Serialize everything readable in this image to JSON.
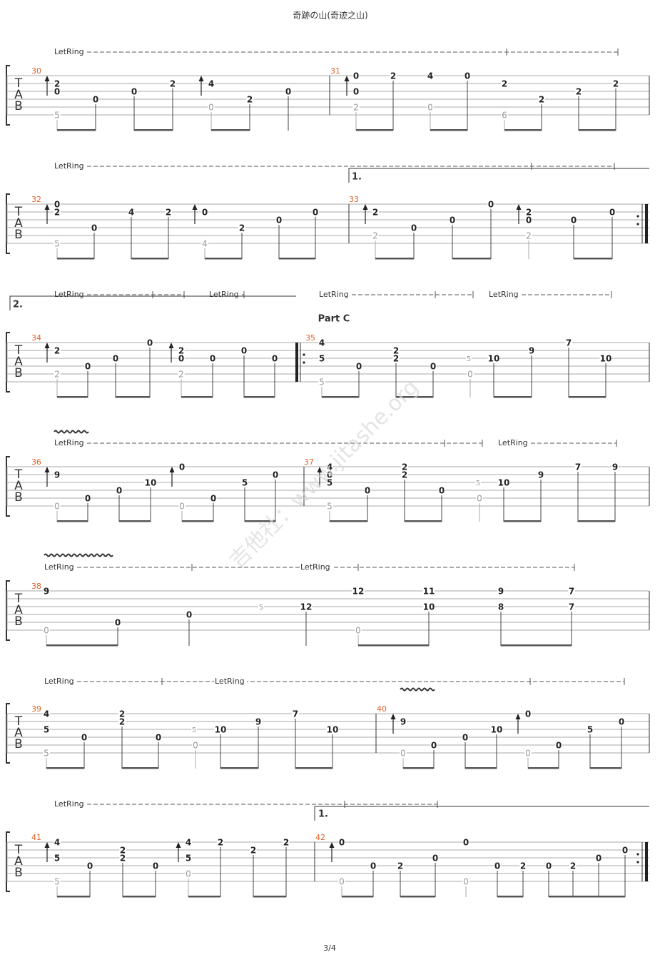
{
  "title": "奇跡の山(奇迹之山)",
  "page": "3/4",
  "watermark": "吉他社：www.jitashe.org",
  "part": "Part C",
  "tab": [
    "T",
    "A",
    "B"
  ],
  "systems": [
    {
      "letring": [
        "LetRing"
      ],
      "endings": [],
      "measures": [
        {
          "number": 30,
          "columns": [
            [
              null,
              2,
              0,
              null,
              null,
              5
            ],
            [
              null,
              null,
              null,
              0
            ],
            [
              null,
              null,
              0
            ],
            [
              null,
              2
            ],
            [
              null,
              4,
              null,
              null,
              0
            ],
            [
              null,
              null,
              null,
              2
            ],
            [
              null,
              null,
              0
            ]
          ]
        },
        {
          "number": 31,
          "columns": [
            [
              0,
              null,
              0,
              null,
              2
            ],
            [
              2
            ],
            [
              4,
              null,
              null,
              null,
              0
            ],
            [
              0
            ],
            [
              null,
              2,
              null,
              null,
              null,
              6
            ],
            [
              null,
              null,
              null,
              2
            ],
            [
              null,
              null,
              2
            ],
            [
              null,
              2
            ]
          ]
        }
      ]
    },
    {
      "letring": [
        "LetRing"
      ],
      "endings": [
        "1."
      ],
      "measures": [
        {
          "number": 32,
          "columns": [
            [
              0,
              2,
              null,
              null,
              null,
              5
            ],
            [
              null,
              null,
              null,
              0
            ],
            [
              null,
              4
            ],
            [
              null,
              2
            ],
            [
              null,
              0,
              null,
              null,
              null,
              4
            ],
            [
              null,
              null,
              null,
              2
            ],
            [
              null,
              null,
              0
            ],
            [
              null,
              0
            ]
          ]
        },
        {
          "number": 33,
          "columns": [
            [
              null,
              2,
              null,
              null,
              2
            ],
            [
              null,
              null,
              null,
              0
            ],
            [
              null,
              null,
              0
            ],
            [
              0
            ],
            [
              null,
              2,
              0,
              null,
              2
            ],
            [
              null,
              null,
              0
            ],
            [
              null,
              0
            ]
          ]
        }
      ]
    },
    {
      "letring": [
        "LetRing",
        "LetRing",
        "LetRing",
        "LetRing"
      ],
      "endings": [
        "2."
      ],
      "measures": [
        {
          "number": 34,
          "columns": [
            [
              null,
              2,
              null,
              null,
              2
            ],
            [
              null,
              null,
              null,
              0
            ],
            [
              null,
              null,
              0
            ],
            [
              0
            ],
            [
              null,
              2,
              0,
              null,
              2
            ],
            [
              null,
              null,
              0
            ],
            [
              null,
              0
            ],
            [
              null,
              null,
              0
            ]
          ]
        },
        {
          "number": 35,
          "columns": [
            [
              4,
              null,
              5,
              null,
              null,
              5
            ],
            [
              null,
              null,
              null,
              0
            ],
            [
              null,
              2,
              2
            ],
            [
              null,
              null,
              null,
              0
            ],
            [
              null,
              null,
              5
            ],
            [
              null,
              null,
              null,
              null,
              0
            ],
            [
              null,
              null,
              10
            ],
            [
              null,
              9
            ],
            [
              7
            ],
            [
              null,
              null,
              10
            ]
          ]
        }
      ]
    },
    {
      "letring": [
        "LetRing",
        "LetRing"
      ],
      "endings": [],
      "measures": [
        {
          "number": 36,
          "columns": [
            [
              null,
              9,
              null,
              null,
              null,
              0
            ],
            [
              null,
              null,
              null,
              null,
              0
            ],
            [
              null,
              null,
              null,
              0
            ],
            [
              null,
              null,
              10
            ],
            [
              0,
              null,
              null,
              null,
              null,
              0
            ],
            [
              null,
              null,
              null,
              null,
              0
            ],
            [
              null,
              null,
              5
            ],
            [
              null,
              0
            ]
          ]
        },
        {
          "number": 37,
          "columns": [
            [
              4,
              0,
              5,
              null,
              null,
              5
            ],
            [
              null,
              null,
              null,
              0
            ],
            [
              2,
              2
            ],
            [
              null,
              null,
              null,
              0
            ],
            [
              null,
              null,
              5
            ],
            [
              null,
              null,
              null,
              null,
              0
            ],
            [
              null,
              null,
              10
            ],
            [
              null,
              9
            ],
            [
              7
            ],
            [
              9
            ]
          ]
        }
      ]
    },
    {
      "letring": [
        "LetRing",
        "LetRing"
      ],
      "endings": [],
      "measures": [
        {
          "number": 38,
          "columns": [
            [
              9,
              null,
              null,
              null,
              null,
              0
            ],
            [
              null,
              null,
              null,
              null,
              0
            ],
            [
              null,
              null,
              null,
              0
            ],
            [
              null,
              null,
              5
            ],
            [
              null,
              null,
              12
            ],
            [
              12,
              null,
              null,
              null,
              null,
              0
            ],
            [
              11,
              null,
              10
            ],
            [
              9,
              null,
              8
            ],
            [
              7,
              null,
              7
            ]
          ]
        }
      ]
    },
    {
      "letring": [
        "LetRing",
        "LetRing"
      ],
      "endings": [],
      "measures": [
        {
          "number": 39,
          "columns": [
            [
              4,
              null,
              5,
              null,
              null,
              5
            ],
            [
              null,
              null,
              null,
              0
            ],
            [
              2,
              2
            ],
            [
              null,
              null,
              null,
              0
            ],
            [
              null,
              null,
              5
            ],
            [
              null,
              null,
              null,
              null,
              0
            ],
            [
              null,
              null,
              10
            ],
            [
              null,
              9
            ],
            [
              7
            ],
            [
              null,
              null,
              10
            ]
          ]
        },
        {
          "number": 40,
          "columns": [
            [
              null,
              9,
              null,
              null,
              null,
              0
            ],
            [
              null,
              null,
              null,
              null,
              0
            ],
            [
              null,
              null,
              null,
              0
            ],
            [
              null,
              null,
              10
            ],
            [
              0,
              null,
              null,
              null,
              null,
              0
            ],
            [
              null,
              null,
              null,
              null,
              0
            ],
            [
              null,
              null,
              5
            ],
            [
              null,
              0
            ]
          ]
        }
      ]
    },
    {
      "letring": [
        "LetRing"
      ],
      "endings": [
        "1."
      ],
      "measures": [
        {
          "number": 41,
          "columns": [
            [
              4,
              null,
              5,
              null,
              null,
              5
            ],
            [
              null,
              null,
              null,
              0
            ],
            [
              null,
              2,
              2
            ],
            [
              null,
              null,
              null,
              0
            ],
            [
              4,
              null,
              5,
              null,
              0
            ],
            [
              2
            ],
            [
              null,
              2
            ],
            [
              2
            ]
          ]
        },
        {
          "number": 42,
          "columns": [
            [
              0,
              null,
              null,
              null,
              null,
              0
            ],
            [
              null,
              null,
              null,
              0
            ],
            [
              null,
              null,
              null,
              2
            ],
            [
              null,
              null,
              0
            ],
            [
              0,
              null,
              null,
              null,
              null,
              0
            ],
            [
              null,
              null,
              null,
              0
            ],
            [
              null,
              null,
              null,
              2
            ],
            [
              null,
              null,
              null,
              0
            ],
            [
              null,
              null,
              null,
              2
            ],
            [
              null,
              null,
              0
            ],
            [
              null,
              0
            ]
          ]
        }
      ]
    }
  ]
}
